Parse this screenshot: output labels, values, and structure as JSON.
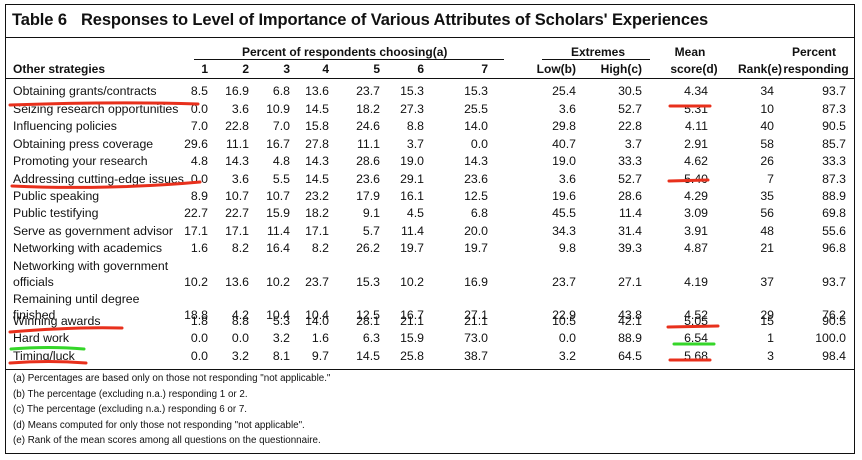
{
  "table": {
    "number": "Table 6",
    "title": "Responses to Level of Importance of Various Attributes of Scholars' Experiences",
    "headers": {
      "strategies": "Other strategies",
      "percent_group": "Percent of respondents choosing(a)",
      "c1": "1",
      "c2": "2",
      "c3": "3",
      "c4": "4",
      "c5": "5",
      "c6": "6",
      "c7": "7",
      "extremes": "Extremes",
      "low": "Low(b)",
      "high": "High(c)",
      "mean_top": "Mean",
      "mean_bottom": "score(d)",
      "rank": "Rank(e)",
      "pct_top": "Percent",
      "pct_bottom": "responding"
    },
    "rows": [
      {
        "label": "Obtaining grants/contracts",
        "vals": [
          "8.5",
          "16.9",
          "6.8",
          "13.6",
          "23.7",
          "15.3",
          "15.3"
        ],
        "low": "25.4",
        "high": "30.5",
        "mean": "4.34",
        "rank": "34",
        "pct": "93.7"
      },
      {
        "label": "Seizing research opportunities",
        "vals": [
          "0.0",
          "3.6",
          "10.9",
          "14.5",
          "18.2",
          "27.3",
          "25.5"
        ],
        "low": "3.6",
        "high": "52.7",
        "mean": "5.31",
        "rank": "10",
        "pct": "87.3"
      },
      {
        "label": "Influencing policies",
        "vals": [
          "7.0",
          "22.8",
          "7.0",
          "15.8",
          "24.6",
          "8.8",
          "14.0"
        ],
        "low": "29.8",
        "high": "22.8",
        "mean": "4.11",
        "rank": "40",
        "pct": "90.5"
      },
      {
        "label": "Obtaining press coverage",
        "vals": [
          "29.6",
          "11.1",
          "16.7",
          "27.8",
          "11.1",
          "3.7",
          "0.0"
        ],
        "low": "40.7",
        "high": "3.7",
        "mean": "2.91",
        "rank": "58",
        "pct": "85.7"
      },
      {
        "label": "Promoting your research",
        "vals": [
          "4.8",
          "14.3",
          "4.8",
          "14.3",
          "28.6",
          "19.0",
          "14.3"
        ],
        "low": "19.0",
        "high": "33.3",
        "mean": "4.62",
        "rank": "26",
        "pct": "33.3"
      },
      {
        "label": "Addressing cutting-edge issues",
        "vals": [
          "0.0",
          "3.6",
          "5.5",
          "14.5",
          "23.6",
          "29.1",
          "23.6"
        ],
        "low": "3.6",
        "high": "52.7",
        "mean": "5.40",
        "rank": "7",
        "pct": "87.3"
      },
      {
        "label": "Public speaking",
        "vals": [
          "8.9",
          "10.7",
          "10.7",
          "23.2",
          "17.9",
          "16.1",
          "12.5"
        ],
        "low": "19.6",
        "high": "28.6",
        "mean": "4.29",
        "rank": "35",
        "pct": "88.9"
      },
      {
        "label": "Public testifying",
        "vals": [
          "22.7",
          "22.7",
          "15.9",
          "18.2",
          "9.1",
          "4.5",
          "6.8"
        ],
        "low": "45.5",
        "high": "11.4",
        "mean": "3.09",
        "rank": "56",
        "pct": "69.8"
      },
      {
        "label": "Serve as government advisor",
        "vals": [
          "17.1",
          "17.1",
          "11.4",
          "17.1",
          "5.7",
          "11.4",
          "20.0"
        ],
        "low": "34.3",
        "high": "31.4",
        "mean": "3.91",
        "rank": "48",
        "pct": "55.6"
      },
      {
        "label": "Networking with academics",
        "vals": [
          "1.6",
          "8.2",
          "16.4",
          "8.2",
          "26.2",
          "19.7",
          "19.7"
        ],
        "low": "9.8",
        "high": "39.3",
        "mean": "4.87",
        "rank": "21",
        "pct": "96.8"
      },
      {
        "label": "Networking with government",
        "label2": "officials",
        "vals": [
          "10.2",
          "13.6",
          "10.2",
          "23.7",
          "15.3",
          "10.2",
          "16.9"
        ],
        "low": "23.7",
        "high": "27.1",
        "mean": "4.19",
        "rank": "37",
        "pct": "93.7"
      },
      {
        "label": "Remaining until degree",
        "label2": "finished",
        "vals": [
          "18.8",
          "4.2",
          "10.4",
          "10.4",
          "12.5",
          "16.7",
          "27.1"
        ],
        "low": "22.9",
        "high": "43.8",
        "mean": "4.52",
        "rank": "29",
        "pct": "76.2"
      },
      {
        "label": "Winning awards",
        "vals": [
          "1.8",
          "8.8",
          "5.3",
          "14.0",
          "28.1",
          "21.1",
          "21.1"
        ],
        "low": "10.5",
        "high": "42.1",
        "mean": "5.05",
        "rank": "15",
        "pct": "90.5"
      },
      {
        "label": "Hard work",
        "vals": [
          "0.0",
          "0.0",
          "3.2",
          "1.6",
          "6.3",
          "15.9",
          "73.0"
        ],
        "low": "0.0",
        "high": "88.9",
        "mean": "6.54",
        "rank": "1",
        "pct": "100.0"
      },
      {
        "label": "Timing/luck",
        "vals": [
          "0.0",
          "3.2",
          "8.1",
          "9.7",
          "14.5",
          "25.8",
          "38.7"
        ],
        "low": "3.2",
        "high": "64.5",
        "mean": "5.68",
        "rank": "3",
        "pct": "98.4"
      }
    ],
    "footnotes": [
      "(a) Percentages are based only on those not responding \"not applicable.\"",
      "(b) The percentage (excluding n.a.) responding 1 or 2.",
      "(c) The percentage (excluding n.a.) responding 6 or 7.",
      "(d) Means computed for only those not responding \"not applicable\".",
      "(e) Rank of the mean scores among all questions on the questionnaire."
    ]
  },
  "annotation_colors": {
    "red": "#e8301c",
    "green": "#35d629"
  }
}
